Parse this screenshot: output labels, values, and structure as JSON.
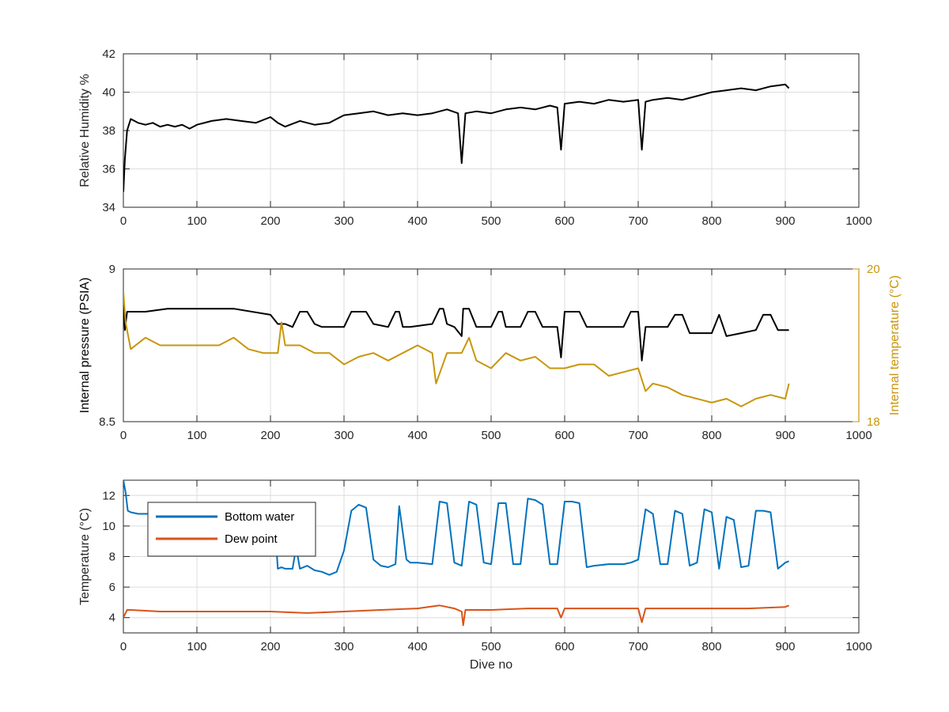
{
  "chart_data": [
    {
      "type": "line",
      "xlabel": "",
      "ylabel": "Relative Humidity %",
      "xlim": [
        0,
        1000
      ],
      "ylim": [
        34,
        42
      ],
      "x_ticks": [
        0,
        100,
        200,
        300,
        400,
        500,
        600,
        700,
        800,
        900,
        1000
      ],
      "y_ticks": [
        34,
        36,
        38,
        40,
        42
      ],
      "grid": true,
      "colors": {
        "humidity": "#000000"
      },
      "series": [
        {
          "x": [
            0,
            2,
            5,
            10,
            20,
            30,
            40,
            50,
            60,
            70,
            80,
            90,
            100,
            120,
            140,
            160,
            180,
            200,
            210,
            220,
            240,
            260,
            280,
            290,
            300,
            320,
            340,
            360,
            380,
            400,
            420,
            440,
            455,
            460,
            465,
            480,
            500,
            520,
            540,
            560,
            580,
            590,
            595,
            600,
            620,
            640,
            660,
            680,
            700,
            705,
            710,
            720,
            740,
            760,
            780,
            800,
            820,
            840,
            860,
            880,
            900,
            905
          ],
          "y": [
            34.8,
            36.5,
            38.0,
            38.6,
            38.4,
            38.3,
            38.4,
            38.2,
            38.3,
            38.2,
            38.3,
            38.1,
            38.3,
            38.5,
            38.6,
            38.5,
            38.4,
            38.7,
            38.4,
            38.2,
            38.5,
            38.3,
            38.4,
            38.6,
            38.8,
            38.9,
            39.0,
            38.8,
            38.9,
            38.8,
            38.9,
            39.1,
            38.9,
            36.3,
            38.9,
            39.0,
            38.9,
            39.1,
            39.2,
            39.1,
            39.3,
            39.2,
            37.0,
            39.4,
            39.5,
            39.4,
            39.6,
            39.5,
            39.6,
            37.0,
            39.5,
            39.6,
            39.7,
            39.6,
            39.8,
            40.0,
            40.1,
            40.2,
            40.1,
            40.3,
            40.4,
            40.2
          ]
        }
      ]
    },
    {
      "type": "line",
      "xlabel": "",
      "ylabel": "Internal pressure (PSIA)",
      "y2label": "Internal temperature (°C)",
      "xlim": [
        0,
        1000
      ],
      "ylim": [
        8.5,
        9
      ],
      "y2lim": [
        18,
        20
      ],
      "x_ticks": [
        0,
        100,
        200,
        300,
        400,
        500,
        600,
        700,
        800,
        900,
        1000
      ],
      "y_ticks": [
        8.5,
        9
      ],
      "y2_ticks": [
        18,
        20
      ],
      "grid": true,
      "colors": {
        "pressure": "#000000",
        "temperature": "#C8960C"
      },
      "series": [
        {
          "axis": "left",
          "x": [
            0,
            2,
            5,
            10,
            30,
            60,
            100,
            150,
            200,
            210,
            220,
            230,
            240,
            250,
            260,
            270,
            300,
            310,
            320,
            330,
            340,
            360,
            370,
            375,
            380,
            390,
            420,
            430,
            435,
            440,
            450,
            460,
            462,
            470,
            480,
            490,
            500,
            510,
            515,
            520,
            530,
            540,
            550,
            560,
            570,
            590,
            595,
            600,
            610,
            620,
            630,
            640,
            660,
            680,
            690,
            700,
            705,
            710,
            720,
            740,
            750,
            760,
            770,
            780,
            800,
            810,
            820,
            840,
            860,
            870,
            880,
            890,
            900,
            905
          ],
          "y": [
            8.88,
            8.8,
            8.86,
            8.86,
            8.86,
            8.87,
            8.87,
            8.87,
            8.85,
            8.82,
            8.82,
            8.81,
            8.86,
            8.86,
            8.82,
            8.81,
            8.81,
            8.86,
            8.86,
            8.86,
            8.82,
            8.81,
            8.86,
            8.86,
            8.81,
            8.81,
            8.82,
            8.87,
            8.87,
            8.82,
            8.81,
            8.78,
            8.87,
            8.87,
            8.81,
            8.81,
            8.81,
            8.86,
            8.86,
            8.81,
            8.81,
            8.81,
            8.86,
            8.86,
            8.81,
            8.81,
            8.71,
            8.86,
            8.86,
            8.86,
            8.81,
            8.81,
            8.81,
            8.81,
            8.86,
            8.86,
            8.7,
            8.81,
            8.81,
            8.81,
            8.85,
            8.85,
            8.79,
            8.79,
            8.79,
            8.85,
            8.78,
            8.79,
            8.8,
            8.85,
            8.85,
            8.8,
            8.8,
            8.8
          ]
        },
        {
          "axis": "right",
          "x": [
            0,
            3,
            10,
            30,
            50,
            70,
            90,
            110,
            130,
            150,
            170,
            190,
            210,
            215,
            220,
            240,
            260,
            280,
            300,
            320,
            340,
            360,
            380,
            400,
            420,
            425,
            440,
            460,
            470,
            480,
            500,
            520,
            540,
            560,
            580,
            600,
            620,
            640,
            660,
            680,
            700,
            710,
            720,
            740,
            760,
            780,
            800,
            820,
            840,
            860,
            880,
            900,
            905
          ],
          "y": [
            19.7,
            19.3,
            18.95,
            19.1,
            19.0,
            19.0,
            19.0,
            19.0,
            19.0,
            19.1,
            18.95,
            18.9,
            18.9,
            19.3,
            19.0,
            19.0,
            18.9,
            18.9,
            18.75,
            18.85,
            18.9,
            18.8,
            18.9,
            19.0,
            18.9,
            18.5,
            18.9,
            18.9,
            19.1,
            18.8,
            18.7,
            18.9,
            18.8,
            18.85,
            18.7,
            18.7,
            18.75,
            18.75,
            18.6,
            18.65,
            18.7,
            18.4,
            18.5,
            18.45,
            18.35,
            18.3,
            18.25,
            18.3,
            18.2,
            18.3,
            18.35,
            18.3,
            18.5
          ]
        }
      ]
    },
    {
      "type": "line",
      "xlabel": "Dive no",
      "ylabel": "Temperature (°C)",
      "xlim": [
        0,
        1000
      ],
      "ylim": [
        3,
        13
      ],
      "x_ticks": [
        0,
        100,
        200,
        300,
        400,
        500,
        600,
        700,
        800,
        900,
        1000
      ],
      "y_ticks": [
        4,
        6,
        8,
        10,
        12
      ],
      "grid": true,
      "legend": "top-left",
      "colors": {
        "bottom_water": "#0072BD",
        "dew_point": "#D95319"
      },
      "series": [
        {
          "name": "Bottom water",
          "x": [
            0,
            3,
            6,
            10,
            20,
            30,
            40,
            60,
            80,
            100,
            120,
            140,
            160,
            180,
            200,
            205,
            210,
            215,
            220,
            230,
            235,
            240,
            250,
            260,
            270,
            280,
            290,
            300,
            310,
            320,
            330,
            340,
            350,
            360,
            370,
            375,
            385,
            390,
            400,
            420,
            430,
            440,
            450,
            460,
            470,
            480,
            490,
            500,
            510,
            520,
            530,
            540,
            550,
            560,
            570,
            580,
            590,
            600,
            610,
            620,
            630,
            640,
            660,
            680,
            690,
            700,
            710,
            720,
            730,
            740,
            750,
            760,
            770,
            780,
            790,
            800,
            810,
            820,
            830,
            840,
            850,
            860,
            870,
            880,
            890,
            900,
            905
          ],
          "y": [
            13.0,
            12.2,
            11.0,
            10.9,
            10.8,
            10.8,
            10.8,
            10.8,
            10.8,
            10.8,
            10.8,
            10.8,
            10.8,
            10.8,
            10.8,
            10.8,
            7.2,
            7.3,
            7.2,
            7.2,
            8.6,
            7.2,
            7.4,
            7.1,
            7.0,
            6.8,
            7.0,
            8.4,
            11.0,
            11.4,
            11.2,
            7.8,
            7.4,
            7.3,
            7.5,
            11.3,
            7.8,
            7.6,
            7.6,
            7.5,
            11.6,
            11.5,
            7.6,
            7.4,
            11.6,
            11.4,
            7.6,
            7.5,
            11.5,
            11.5,
            7.5,
            7.5,
            11.8,
            11.7,
            11.4,
            7.5,
            7.5,
            11.6,
            11.6,
            11.5,
            7.3,
            7.4,
            7.5,
            7.5,
            7.6,
            7.8,
            11.1,
            10.8,
            7.5,
            7.5,
            11.0,
            10.8,
            7.4,
            7.6,
            11.1,
            10.9,
            7.2,
            10.6,
            10.4,
            7.3,
            7.4,
            11.0,
            11.0,
            10.9,
            7.2,
            7.6,
            7.7
          ]
        },
        {
          "name": "Dew point",
          "x": [
            0,
            5,
            10,
            50,
            100,
            150,
            200,
            250,
            300,
            350,
            400,
            430,
            440,
            450,
            460,
            462,
            465,
            480,
            500,
            550,
            590,
            595,
            600,
            650,
            700,
            705,
            710,
            750,
            800,
            850,
            900,
            905
          ],
          "y": [
            4.0,
            4.5,
            4.5,
            4.4,
            4.4,
            4.4,
            4.4,
            4.3,
            4.4,
            4.5,
            4.6,
            4.8,
            4.7,
            4.6,
            4.4,
            3.5,
            4.5,
            4.5,
            4.5,
            4.6,
            4.6,
            4.0,
            4.6,
            4.6,
            4.6,
            3.7,
            4.6,
            4.6,
            4.6,
            4.6,
            4.7,
            4.8
          ]
        }
      ]
    }
  ]
}
